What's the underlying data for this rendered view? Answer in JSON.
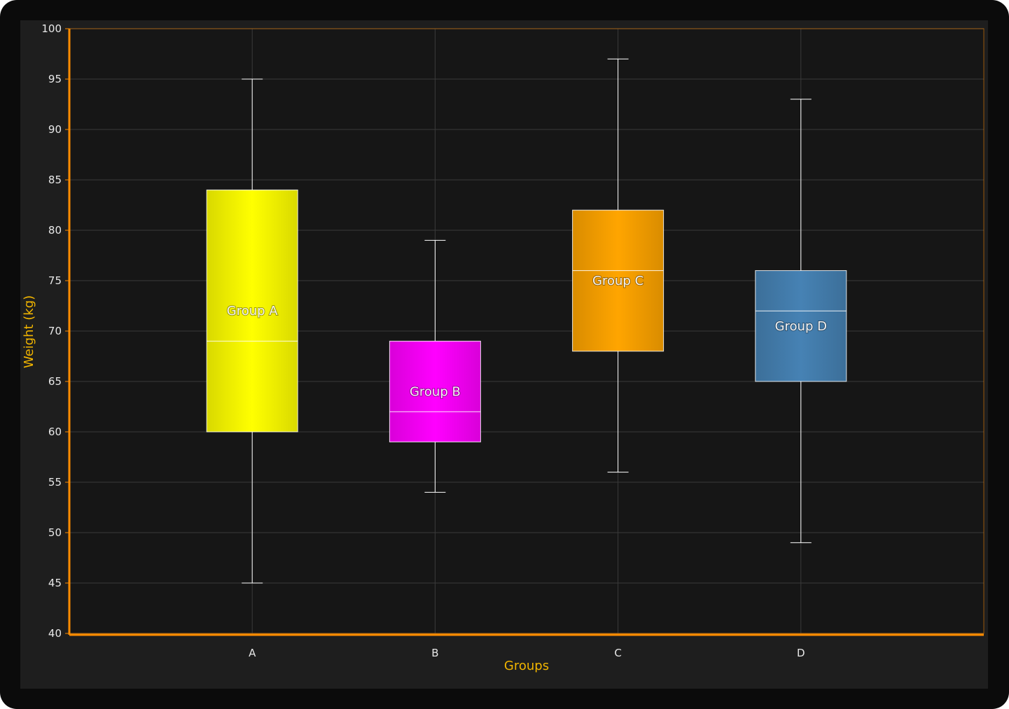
{
  "chart_data": {
    "type": "boxplot",
    "xlabel": "Groups",
    "ylabel": "Weight (kg)",
    "ylim": [
      40,
      100
    ],
    "ytick_step": 5,
    "grid": true,
    "categories": [
      "A",
      "B",
      "C",
      "D"
    ],
    "boxes": [
      {
        "category": "A",
        "label": "Group A",
        "min": 45,
        "q1": 60,
        "median": 69,
        "q3": 84,
        "max": 95,
        "color": "#ffff00"
      },
      {
        "category": "B",
        "label": "Group B",
        "min": 54,
        "q1": 59,
        "median": 62,
        "q3": 69,
        "max": 79,
        "color": "#ff00ff"
      },
      {
        "category": "C",
        "label": "Group C",
        "min": 56,
        "q1": 68,
        "median": 76,
        "q3": 82,
        "max": 97,
        "color": "#ffa500"
      },
      {
        "category": "D",
        "label": "Group D",
        "min": 49,
        "q1": 65,
        "median": 72,
        "q3": 76,
        "max": 93,
        "color": "#4682b4"
      }
    ],
    "colors": {
      "background": "#161616",
      "axis": "#ff8c00",
      "grid": "#3a3a3a",
      "whisker": "#ffffff"
    }
  }
}
